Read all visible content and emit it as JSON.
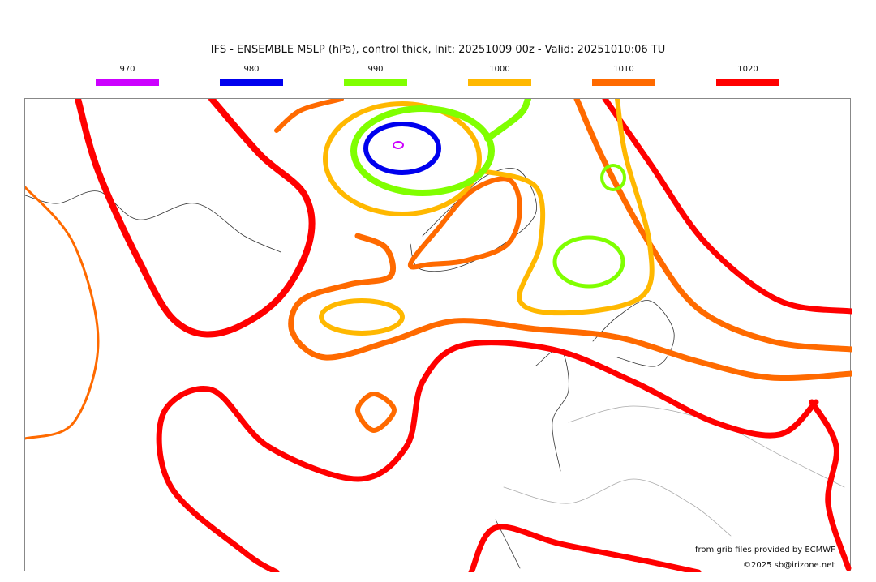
{
  "title": "IFS - ENSEMBLE MSLP (hPa), control thick, Init: 20251009 00z - Valid: 20251010:06 TU",
  "legend": [
    {
      "label": "970",
      "color": "#cc00ff"
    },
    {
      "label": "980",
      "color": "#0000ee"
    },
    {
      "label": "990",
      "color": "#80ff00"
    },
    {
      "label": "1000",
      "color": "#ffb800"
    },
    {
      "label": "1010",
      "color": "#ff6a00"
    },
    {
      "label": "1020",
      "color": "#ff0000"
    }
  ],
  "credits": {
    "source": "from grib files provided by ECMWF",
    "copyright": "©2025 sb@irizone.net"
  }
}
